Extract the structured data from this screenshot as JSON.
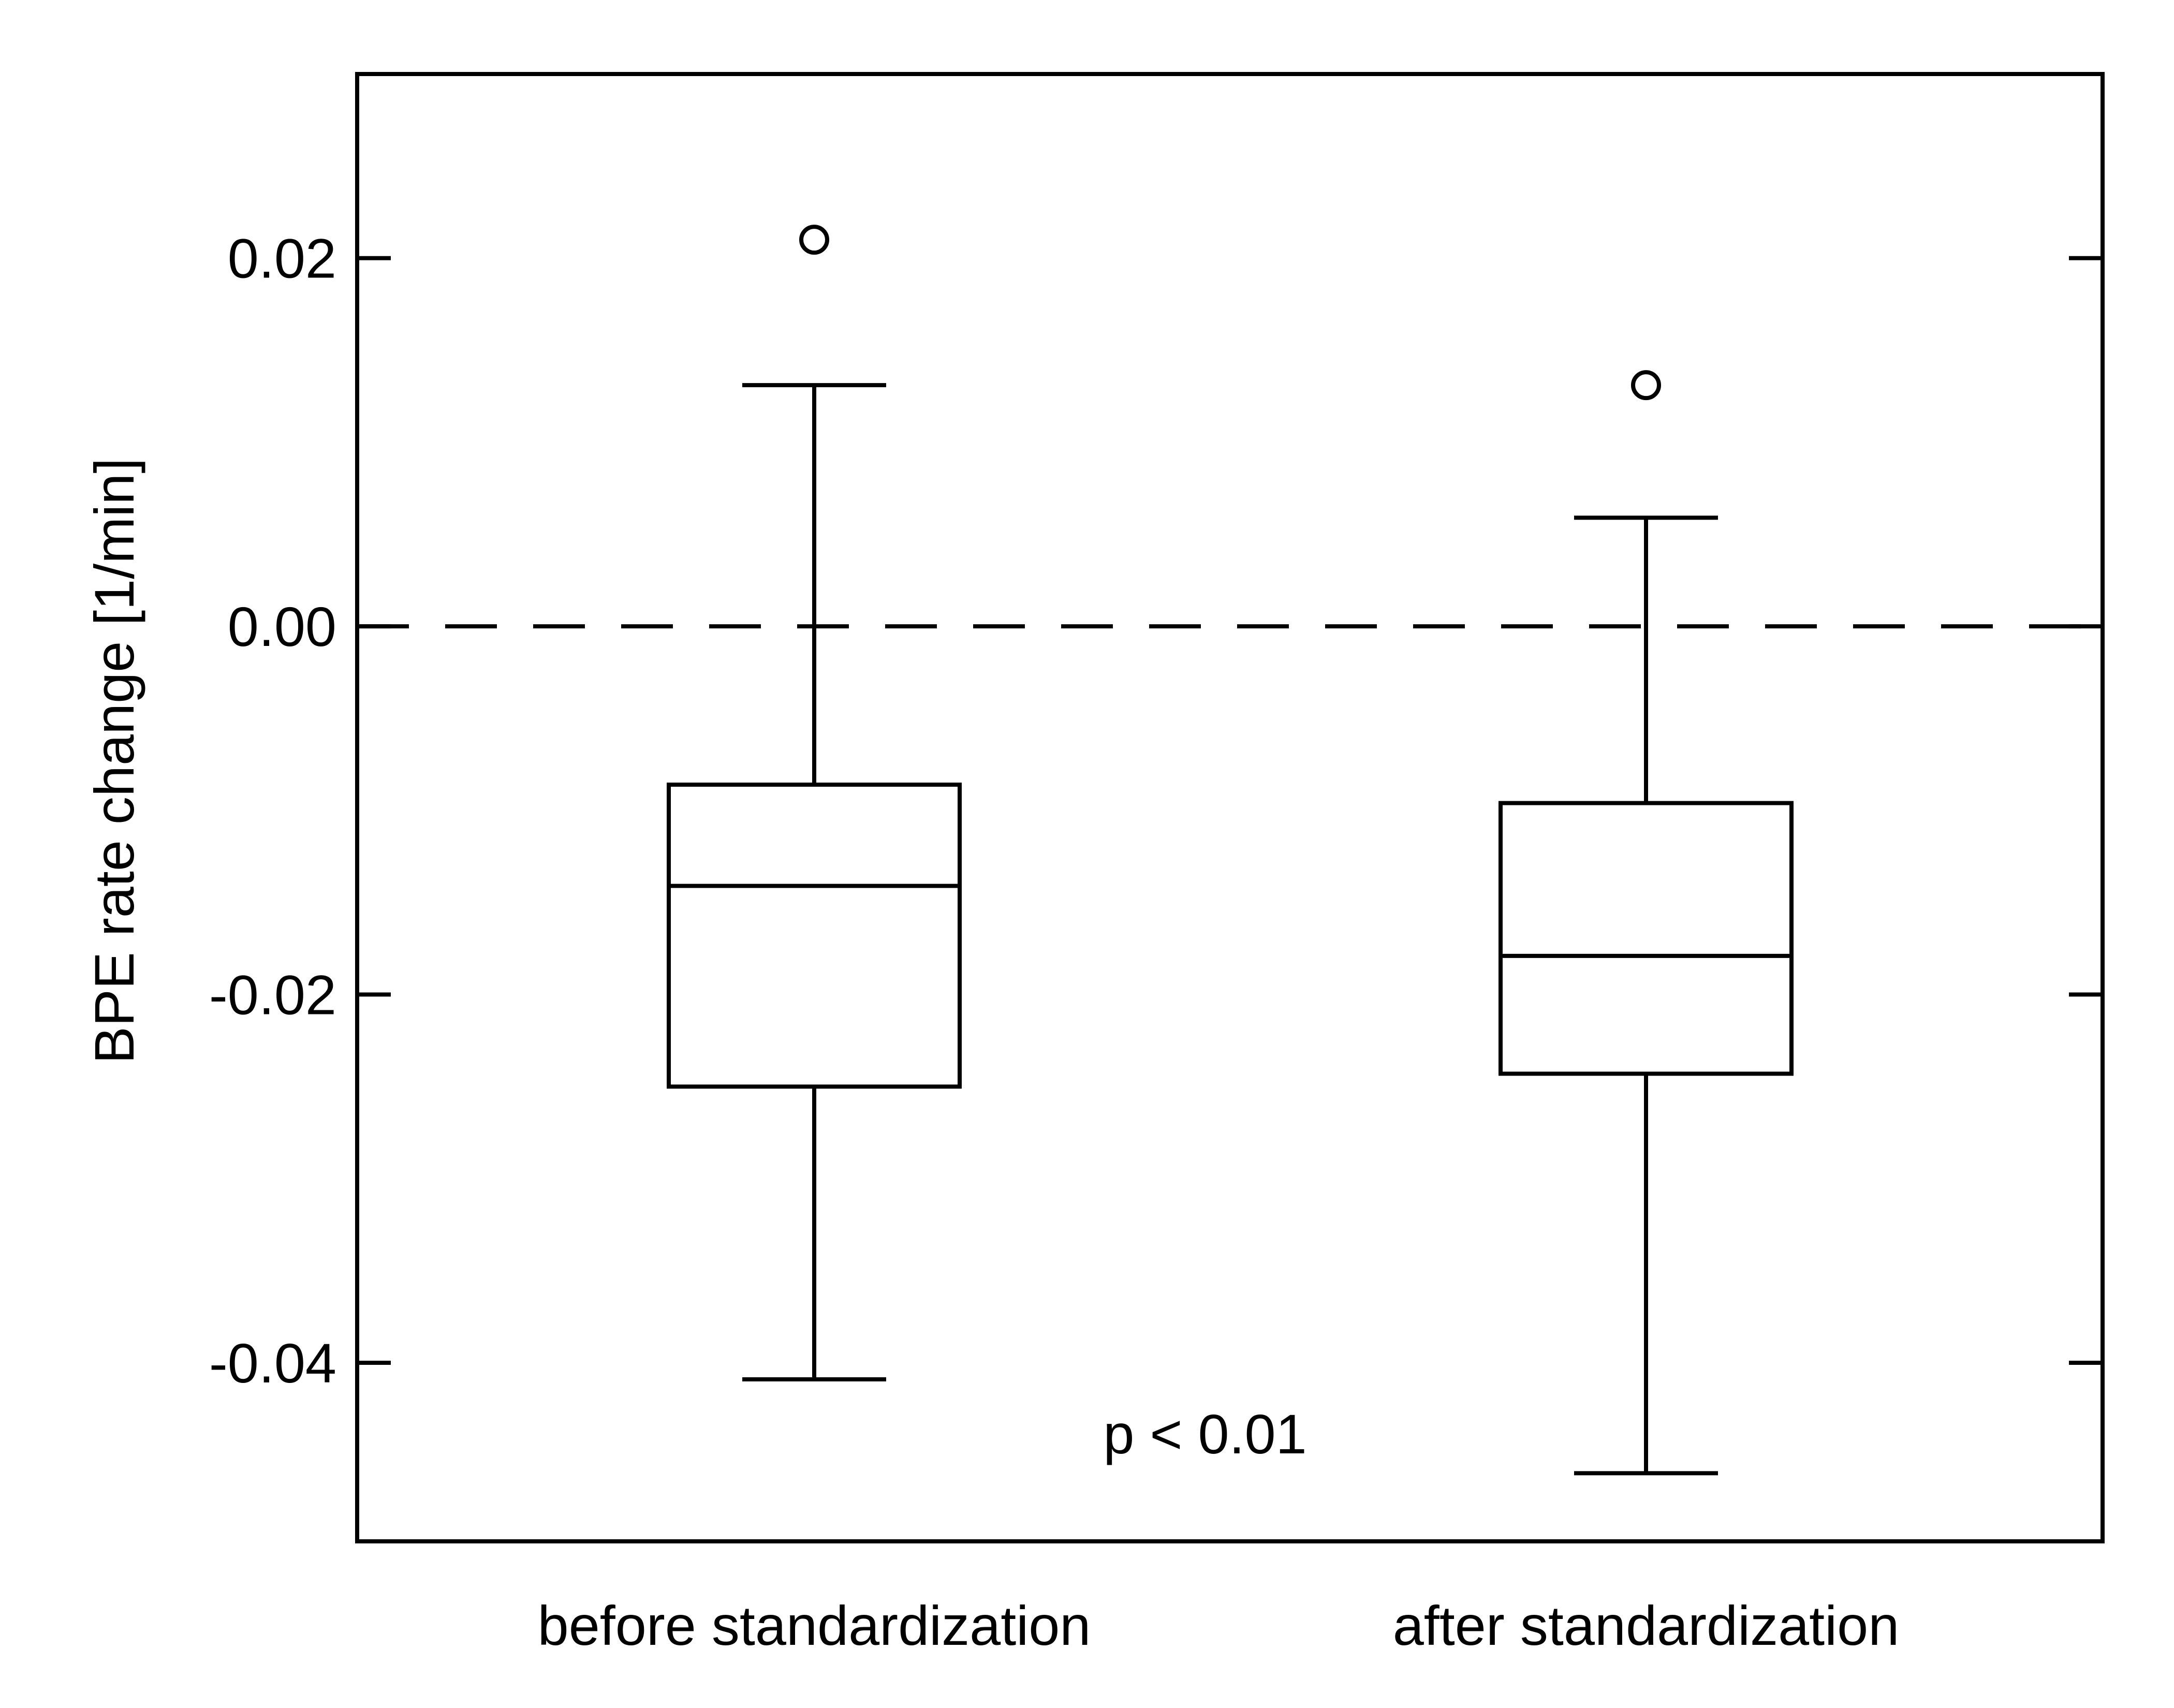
{
  "chart_data": {
    "type": "box",
    "categories": [
      "before standardization",
      "after standardization"
    ],
    "ylabel": "BPE rate change  [1/min]",
    "xlabel": "",
    "ylim": [
      -0.0497,
      0.03
    ],
    "yticks": [
      {
        "value": 0.02,
        "label": "0.02"
      },
      {
        "value": 0.0,
        "label": "0.00"
      },
      {
        "value": -0.02,
        "label": "-0.02"
      },
      {
        "value": -0.04,
        "label": "-0.04"
      }
    ],
    "reference_line": {
      "value": 0.0,
      "style": "dashed"
    },
    "boxes": [
      {
        "category": "before standardization",
        "whisker_low": -0.0409,
        "q1": -0.025,
        "median": -0.0141,
        "q3": -0.0086,
        "whisker_high": 0.0131,
        "outliers": [
          0.021
        ]
      },
      {
        "category": "after standardization",
        "whisker_low": -0.046,
        "q1": -0.0243,
        "median": -0.0179,
        "q3": -0.0096,
        "whisker_high": 0.0059,
        "outliers": [
          0.0131
        ]
      }
    ],
    "annotations": [
      {
        "text": "p < 0.01"
      }
    ],
    "grid": false,
    "legend": "none",
    "colors": {
      "stroke": "#000000",
      "background": "#ffffff"
    }
  }
}
